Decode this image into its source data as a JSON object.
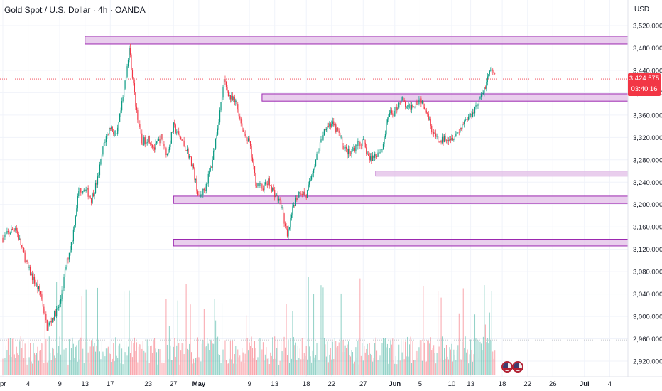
{
  "header": {
    "title": "Gold Spot / U.S. Dollar · 4h · OANDA",
    "currency": "USD"
  },
  "price_tag": {
    "price": "3,424.575",
    "countdown": "03:40:16",
    "color": "#f23645"
  },
  "colors": {
    "up": "#089981",
    "down": "#f23645",
    "zone_fill": "#e1bee7",
    "zone_stroke": "#9c27b0"
  },
  "icons": [
    "us-flag-icon",
    "us-flag-icon"
  ],
  "chart_data": {
    "type": "candlestick",
    "symbol": "XAUUSD",
    "timeframe": "4h",
    "y_ticks": [
      "3,520.000",
      "3,480.000",
      "3,440.000",
      "3,400.000",
      "3,360.000",
      "3,320.000",
      "3,280.000",
      "3,240.000",
      "3,200.000",
      "3,160.000",
      "3,120.000",
      "3,080.000",
      "3,040.000",
      "3,000.000",
      "2,960.000",
      "2,920.000"
    ],
    "y_tick_values": [
      3520,
      3480,
      3440,
      3400,
      3360,
      3320,
      3280,
      3240,
      3200,
      3160,
      3120,
      3080,
      3040,
      3000,
      2960,
      2920
    ],
    "ylim": [
      2908,
      3548
    ],
    "x_ticks": [
      "pr",
      "4",
      "9",
      "13",
      "17",
      "23",
      "27",
      "May",
      "9",
      "13",
      "18",
      "22",
      "27",
      "Jun",
      "5",
      "10",
      "13",
      "18",
      "22",
      "26",
      "Jul",
      "4"
    ],
    "x_tick_days": [
      0,
      4,
      9,
      13,
      17,
      23,
      27,
      31,
      39,
      43,
      48,
      52,
      57,
      62,
      66,
      71,
      74,
      79,
      83,
      87,
      92,
      96
    ],
    "last_price": 3424.575,
    "zones": [
      {
        "day_start": 13,
        "low": 3487,
        "high": 3501
      },
      {
        "day_start": 41,
        "low": 3385,
        "high": 3398
      },
      {
        "day_start": 59,
        "low": 3251,
        "high": 3260
      },
      {
        "day_start": 27,
        "low": 3202,
        "high": 3215
      },
      {
        "day_start": 27,
        "low": 3126,
        "high": 3138
      }
    ],
    "path": [
      [
        0,
        3140
      ],
      [
        2,
        3160
      ],
      [
        4,
        3085
      ],
      [
        6,
        3040
      ],
      [
        7,
        2980
      ],
      [
        8,
        3000
      ],
      [
        9,
        3020
      ],
      [
        10,
        3090
      ],
      [
        11,
        3140
      ],
      [
        12,
        3225
      ],
      [
        13,
        3230
      ],
      [
        14,
        3210
      ],
      [
        15,
        3245
      ],
      [
        16,
        3310
      ],
      [
        17,
        3340
      ],
      [
        18,
        3320
      ],
      [
        19,
        3390
      ],
      [
        20,
        3480
      ],
      [
        21,
        3380
      ],
      [
        22,
        3310
      ],
      [
        23,
        3320
      ],
      [
        24,
        3300
      ],
      [
        25,
        3320
      ],
      [
        26,
        3290
      ],
      [
        27,
        3340
      ],
      [
        28,
        3320
      ],
      [
        29,
        3300
      ],
      [
        30,
        3270
      ],
      [
        31,
        3210
      ],
      [
        32,
        3230
      ],
      [
        33,
        3270
      ],
      [
        34,
        3340
      ],
      [
        35,
        3420
      ],
      [
        36,
        3390
      ],
      [
        37,
        3380
      ],
      [
        38,
        3330
      ],
      [
        39,
        3310
      ],
      [
        40,
        3240
      ],
      [
        41,
        3230
      ],
      [
        42,
        3240
      ],
      [
        43,
        3220
      ],
      [
        44,
        3200
      ],
      [
        45,
        3140
      ],
      [
        46,
        3200
      ],
      [
        47,
        3225
      ],
      [
        48,
        3215
      ],
      [
        49,
        3260
      ],
      [
        50,
        3300
      ],
      [
        51,
        3340
      ],
      [
        52,
        3345
      ],
      [
        53,
        3330
      ],
      [
        54,
        3300
      ],
      [
        55,
        3290
      ],
      [
        56,
        3310
      ],
      [
        57,
        3310
      ],
      [
        58,
        3280
      ],
      [
        59,
        3290
      ],
      [
        60,
        3300
      ],
      [
        61,
        3360
      ],
      [
        62,
        3365
      ],
      [
        63,
        3390
      ],
      [
        64,
        3370
      ],
      [
        65,
        3380
      ],
      [
        66,
        3390
      ],
      [
        67,
        3370
      ],
      [
        68,
        3330
      ],
      [
        69,
        3310
      ],
      [
        70,
        3320
      ],
      [
        71,
        3320
      ],
      [
        72,
        3330
      ],
      [
        73,
        3350
      ],
      [
        74,
        3360
      ],
      [
        75,
        3380
      ],
      [
        76,
        3400
      ],
      [
        77,
        3440
      ],
      [
        78,
        3430
      ]
    ]
  }
}
